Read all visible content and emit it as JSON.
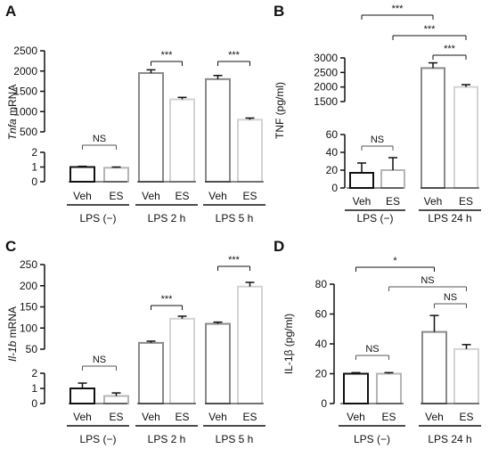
{
  "chart_data": [
    {
      "panel": "A",
      "type": "bar",
      "ylabel": "Tnfa mRNA",
      "ylabel_italic_part": "Tnfa",
      "ylabel_rest": " mRNA",
      "scale": "broken",
      "y_lower_ticks": [
        "0",
        "1",
        "2"
      ],
      "y_upper_ticks": [
        "500",
        "1000",
        "1500",
        "2000",
        "2500"
      ],
      "groups": [
        {
          "label": "LPS (−)",
          "bars": [
            {
              "label": "Veh",
              "value": 1.0,
              "error": 0.05,
              "series": "Veh"
            },
            {
              "label": "ES",
              "value": 0.95,
              "error": 0.05,
              "series": "ES"
            }
          ]
        },
        {
          "label": "LPS 2 h",
          "bars": [
            {
              "label": "Veh",
              "value": 1950,
              "error": 80,
              "series": "Veh"
            },
            {
              "label": "ES",
              "value": 1300,
              "error": 50,
              "series": "ES"
            }
          ]
        },
        {
          "label": "LPS 5 h",
          "bars": [
            {
              "label": "Veh",
              "value": 1800,
              "error": 90,
              "series": "Veh"
            },
            {
              "label": "ES",
              "value": 800,
              "error": 40,
              "series": "ES"
            }
          ]
        }
      ],
      "significance": [
        {
          "label": "NS",
          "from": [
            0,
            0
          ],
          "to": [
            0,
            1
          ]
        },
        {
          "label": "***",
          "from": [
            1,
            0
          ],
          "to": [
            1,
            1
          ]
        },
        {
          "label": "***",
          "from": [
            2,
            0
          ],
          "to": [
            2,
            1
          ]
        }
      ]
    },
    {
      "panel": "B",
      "type": "bar",
      "ylabel": "TNF (pg/ml)",
      "scale": "broken",
      "y_lower_ticks": [
        "0",
        "20",
        "40",
        "60"
      ],
      "y_upper_ticks": [
        "1500",
        "2000",
        "2500",
        "3000"
      ],
      "groups": [
        {
          "label": "LPS (−)",
          "bars": [
            {
              "label": "Veh",
              "value": 17,
              "error": 11,
              "series": "Veh"
            },
            {
              "label": "ES",
              "value": 20,
              "error": 14,
              "series": "ES"
            }
          ]
        },
        {
          "label": "LPS 24 h",
          "bars": [
            {
              "label": "Veh",
              "value": 2650,
              "error": 180,
              "series": "Veh"
            },
            {
              "label": "ES",
              "value": 2000,
              "error": 80,
              "series": "ES"
            }
          ]
        }
      ],
      "significance": [
        {
          "label": "NS",
          "from": [
            0,
            0
          ],
          "to": [
            0,
            1
          ]
        },
        {
          "label": "***",
          "from": [
            0,
            0
          ],
          "to": [
            1,
            0
          ]
        },
        {
          "label": "***",
          "from": [
            0,
            1
          ],
          "to": [
            1,
            1
          ]
        },
        {
          "label": "***",
          "from": [
            1,
            0
          ],
          "to": [
            1,
            1
          ]
        }
      ]
    },
    {
      "panel": "C",
      "type": "bar",
      "ylabel": "Il-1b mRNA",
      "ylabel_italic_part": "Il-1b",
      "ylabel_rest": " mRNA",
      "scale": "broken",
      "y_lower_ticks": [
        "0",
        "1",
        "2"
      ],
      "y_upper_ticks": [
        "50",
        "100",
        "150",
        "200",
        "250"
      ],
      "groups": [
        {
          "label": "LPS (−)",
          "bars": [
            {
              "label": "Veh",
              "value": 1.0,
              "error": 0.35,
              "series": "Veh"
            },
            {
              "label": "ES",
              "value": 0.5,
              "error": 0.2,
              "series": "ES"
            }
          ]
        },
        {
          "label": "LPS 2 h",
          "bars": [
            {
              "label": "Veh",
              "value": 65,
              "error": 4,
              "series": "Veh"
            },
            {
              "label": "ES",
              "value": 122,
              "error": 6,
              "series": "ES"
            }
          ]
        },
        {
          "label": "LPS 5 h",
          "bars": [
            {
              "label": "Veh",
              "value": 110,
              "error": 4,
              "series": "Veh"
            },
            {
              "label": "ES",
              "value": 198,
              "error": 10,
              "series": "ES"
            }
          ]
        }
      ],
      "significance": [
        {
          "label": "NS",
          "from": [
            0,
            0
          ],
          "to": [
            0,
            1
          ]
        },
        {
          "label": "***",
          "from": [
            1,
            0
          ],
          "to": [
            1,
            1
          ]
        },
        {
          "label": "***",
          "from": [
            2,
            0
          ],
          "to": [
            2,
            1
          ]
        }
      ]
    },
    {
      "panel": "D",
      "type": "bar",
      "ylabel": "IL-1β (pg/ml)",
      "scale": "linear",
      "ylim": [
        0,
        80
      ],
      "y_ticks": [
        "0",
        "20",
        "40",
        "60",
        "80"
      ],
      "groups": [
        {
          "label": "LPS (−)",
          "bars": [
            {
              "label": "Veh",
              "value": 20,
              "error": 0.7,
              "series": "Veh"
            },
            {
              "label": "ES",
              "value": 20,
              "error": 0.7,
              "series": "ES"
            }
          ]
        },
        {
          "label": "LPS 24 h",
          "bars": [
            {
              "label": "Veh",
              "value": 48,
              "error": 11,
              "series": "Veh"
            },
            {
              "label": "ES",
              "value": 36.5,
              "error": 3,
              "series": "ES"
            }
          ]
        }
      ],
      "significance": [
        {
          "label": "NS",
          "from": [
            0,
            0
          ],
          "to": [
            0,
            1
          ]
        },
        {
          "label": "*",
          "from": [
            0,
            0
          ],
          "to": [
            1,
            0
          ]
        },
        {
          "label": "NS",
          "from": [
            0,
            1
          ],
          "to": [
            1,
            1
          ]
        },
        {
          "label": "NS",
          "from": [
            1,
            0
          ],
          "to": [
            1,
            1
          ]
        }
      ]
    }
  ],
  "colors": {
    "Veh": "#111111",
    "ES": "#b5b5b5",
    "Veh_lps": "#8a8a8a",
    "ES_lps": "#d3d3d3",
    "axis": "#111111"
  }
}
